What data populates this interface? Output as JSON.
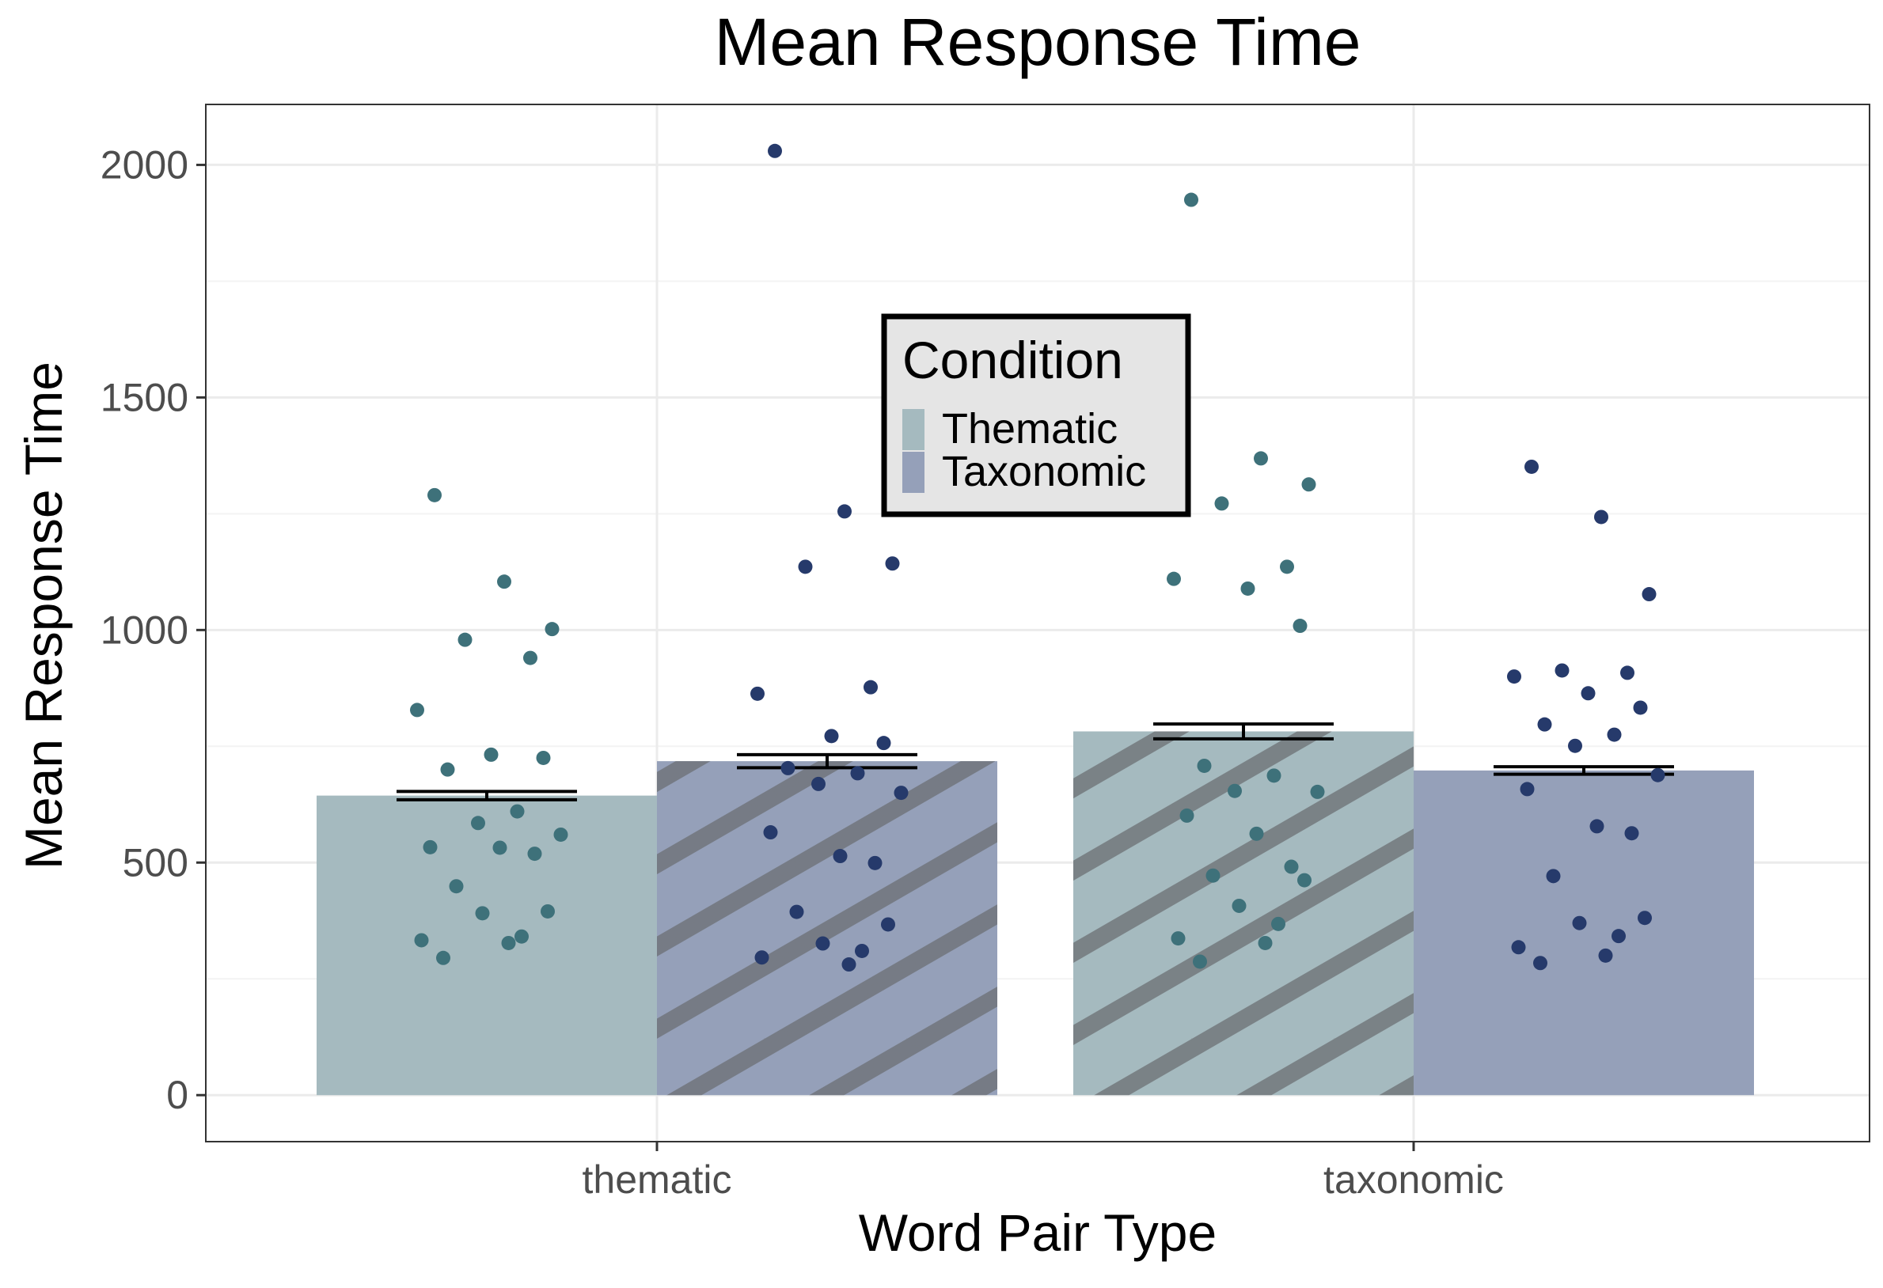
{
  "chart_data": {
    "type": "bar",
    "title": "Mean Response Time",
    "xlabel": "Word Pair Type",
    "ylabel": "Mean Response Time",
    "categories": [
      "thematic",
      "taxonomic"
    ],
    "ylim": [
      -100,
      2130
    ],
    "yticks": [
      0,
      500,
      1000,
      1500,
      2000
    ],
    "grid": true,
    "legend": {
      "title": "Condition",
      "position": "top-center"
    },
    "colors": {
      "Thematic": "#a5babf",
      "Taxonomic": "#95a0b9",
      "thematic_points": "#3e717a",
      "taxonomic_points": "#263a6b",
      "hatch": "#6b6f73",
      "grid": "#ebebeb"
    },
    "series": [
      {
        "name": "Thematic",
        "values": [
          644,
          782
        ],
        "se": [
          9,
          16
        ],
        "hatched": [
          false,
          true
        ],
        "points": [
          [
            1290,
            1104,
            1002,
            979,
            940,
            828,
            732,
            725,
            700,
            610,
            585,
            560,
            533,
            532,
            519,
            449,
            395,
            391,
            341,
            333,
            327,
            295
          ],
          [
            1925,
            1369,
            1313,
            1272,
            1136,
            1110,
            1089,
            1009,
            708,
            687,
            654,
            652,
            601,
            562,
            491,
            472,
            462,
            407,
            368,
            337,
            327,
            287
          ]
        ]
      },
      {
        "name": "Taxonomic",
        "values": [
          718,
          698
        ],
        "se": [
          14,
          8
        ],
        "hatched": [
          true,
          false
        ],
        "points": [
          [
            2030,
            1255,
            1143,
            1136,
            877,
            863,
            772,
            757,
            703,
            692,
            669,
            650,
            565,
            514,
            499,
            394,
            367,
            326,
            310,
            296,
            281
          ],
          [
            1351,
            1243,
            1077,
            913,
            908,
            900,
            864,
            833,
            797,
            775,
            751,
            688,
            658,
            578,
            563,
            471,
            381,
            370,
            342,
            318,
            300,
            284
          ]
        ]
      }
    ]
  }
}
